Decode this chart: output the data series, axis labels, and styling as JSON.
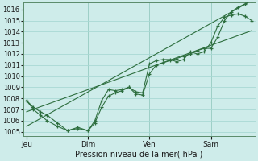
{
  "background_color": "#ceecea",
  "plot_bg_color": "#ceecea",
  "grid_color": "#a8d8d4",
  "line_color": "#2d6e3e",
  "title": "Pression niveau de la mer( hPa )",
  "ylabel_ticks": [
    1005,
    1006,
    1007,
    1008,
    1009,
    1010,
    1011,
    1012,
    1013,
    1014,
    1015,
    1016
  ],
  "ylim": [
    1004.6,
    1016.6
  ],
  "xlim": [
    -2,
    134
  ],
  "day_labels": [
    "Jeu",
    "Dim",
    "Ven",
    "Sam"
  ],
  "day_positions": [
    0,
    36,
    72,
    108
  ],
  "series_jagged1": {
    "x": [
      0,
      4,
      8,
      12,
      18,
      24,
      30,
      36,
      40,
      44,
      48,
      52,
      56,
      60,
      64,
      68,
      72,
      76,
      80,
      84,
      88,
      92,
      96,
      100,
      104,
      108,
      112,
      116,
      120,
      124,
      128,
      132
    ],
    "y": [
      1007.8,
      1007.2,
      1006.8,
      1006.5,
      1005.8,
      1005.1,
      1005.4,
      1005.1,
      1006.0,
      1007.8,
      1008.8,
      1008.7,
      1008.8,
      1009.0,
      1008.6,
      1008.5,
      1011.1,
      1011.4,
      1011.5,
      1011.5,
      1011.3,
      1011.5,
      1012.2,
      1012.0,
      1012.2,
      1013.0,
      1014.5,
      1015.3,
      1015.5,
      1015.6,
      1015.4,
      1015.0
    ]
  },
  "series_jagged2": {
    "x": [
      0,
      4,
      8,
      12,
      18,
      24,
      30,
      36,
      40,
      44,
      48,
      52,
      56,
      60,
      64,
      68,
      72,
      76,
      80,
      84,
      88,
      92,
      96,
      100,
      104,
      108,
      112,
      116,
      120,
      124,
      128,
      132
    ],
    "y": [
      1007.8,
      1007.0,
      1006.5,
      1006.0,
      1005.5,
      1005.1,
      1005.3,
      1005.1,
      1005.8,
      1007.2,
      1008.2,
      1008.5,
      1008.7,
      1009.0,
      1008.4,
      1008.3,
      1010.2,
      1011.0,
      1011.2,
      1011.4,
      1011.6,
      1011.8,
      1012.0,
      1012.3,
      1012.5,
      1012.5,
      1013.5,
      1015.0,
      1015.8,
      1016.2,
      1016.5,
      1016.8
    ]
  },
  "series_straight1": {
    "x": [
      0,
      132
    ],
    "y": [
      1006.8,
      1014.1
    ]
  },
  "series_straight2": {
    "x": [
      0,
      132
    ],
    "y": [
      1005.5,
      1016.8
    ]
  }
}
